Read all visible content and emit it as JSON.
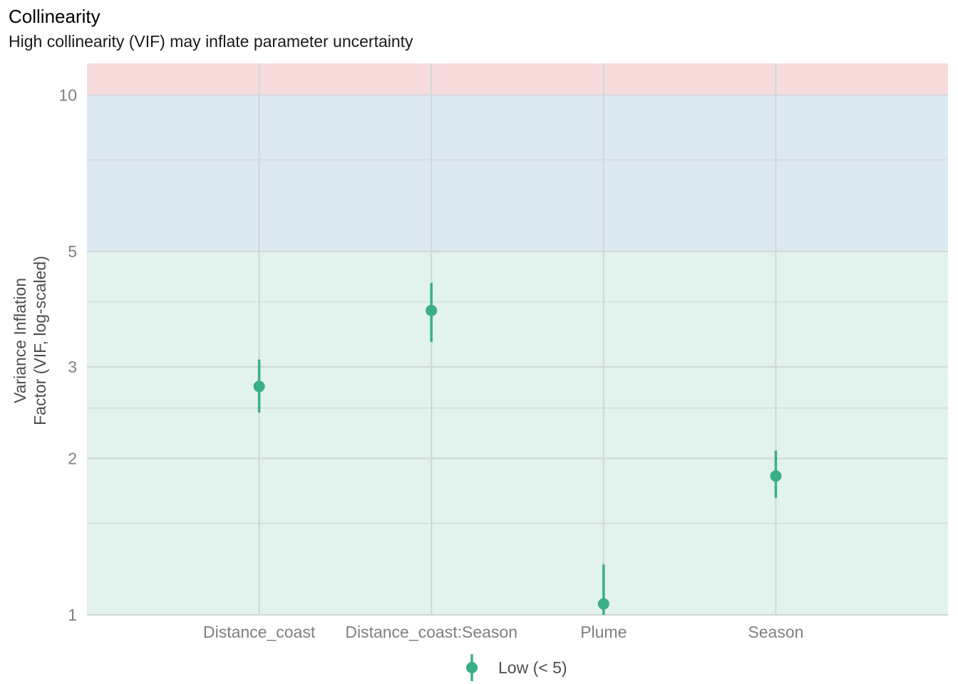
{
  "chart_data": {
    "type": "scatter",
    "title": "Collinearity",
    "subtitle": "High collinearity (VIF) may inflate parameter uncertainty",
    "xlabel": "",
    "ylabel_lines": [
      "Variance Inflation",
      "Factor (VIF, log-scaled)"
    ],
    "y_scale": "log",
    "ylim": [
      1,
      11.5
    ],
    "y_ticks": [
      1,
      2,
      3,
      5,
      10
    ],
    "y_minor_gridlines": [
      1.5,
      2.5,
      4,
      7.5
    ],
    "categories": [
      "Distance_coast",
      "Distance_coast:Season",
      "Plume",
      "Season"
    ],
    "series": [
      {
        "name": "Low (< 5)",
        "color": "#3aaf85",
        "values": [
          2.75,
          3.85,
          1.05,
          1.85
        ],
        "ci_low": [
          2.45,
          3.35,
          1.0,
          1.68
        ],
        "ci_high": [
          3.1,
          4.35,
          1.25,
          2.07
        ]
      }
    ],
    "bands": [
      {
        "from": 1,
        "to": 5,
        "color": "#e2f2ec"
      },
      {
        "from": 5,
        "to": 10,
        "color": "#dde9f1"
      },
      {
        "from": 10,
        "to": 11.5,
        "color": "#f8dcdc"
      }
    ],
    "grid": true,
    "legend": {
      "position": "bottom",
      "entries": [
        "Low (< 5)"
      ]
    }
  }
}
